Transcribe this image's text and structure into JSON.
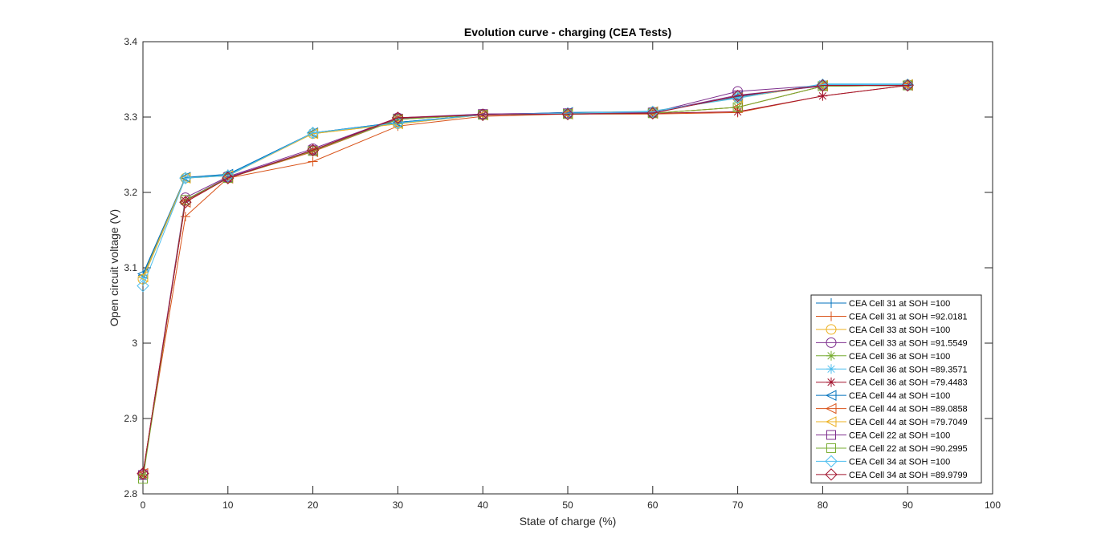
{
  "chart_data": {
    "type": "line",
    "title": "Evolution curve - charging (CEA Tests)",
    "xlabel": "State of charge (%)",
    "ylabel": "Open circuit voltage (V)",
    "xlim": [
      0,
      100
    ],
    "ylim": [
      2.8,
      3.4
    ],
    "x_ticks": [
      "0",
      "10",
      "20",
      "30",
      "40",
      "50",
      "60",
      "70",
      "80",
      "90",
      "100"
    ],
    "y_ticks": [
      "2.8",
      "2.9",
      "3",
      "3.1",
      "3.2",
      "3.3",
      "3.4"
    ],
    "grid": false,
    "legend_position": "bottom-right",
    "x": [
      0,
      5,
      10,
      20,
      30,
      40,
      50,
      60,
      70,
      80,
      90
    ],
    "series": [
      {
        "name": "CEA Cell 31 at SOH =100",
        "color": "#0072BD",
        "marker": "plus",
        "values": [
          3.09,
          3.219,
          3.224,
          3.279,
          3.293,
          3.303,
          3.306,
          3.307,
          3.327,
          3.343,
          3.343
        ]
      },
      {
        "name": "CEA Cell 31 at SOH =92.0181",
        "color": "#D95319",
        "marker": "plus",
        "values": [
          2.826,
          3.168,
          3.219,
          3.241,
          3.288,
          3.301,
          3.304,
          3.304,
          3.306,
          3.328,
          3.342
        ]
      },
      {
        "name": "CEA Cell 33 at SOH =100",
        "color": "#EDB120",
        "marker": "circle",
        "values": [
          3.085,
          3.219,
          3.222,
          3.278,
          3.291,
          3.303,
          3.305,
          3.307,
          3.326,
          3.342,
          3.343
        ]
      },
      {
        "name": "CEA Cell 33 at SOH =91.5549",
        "color": "#7E2F8E",
        "marker": "circle",
        "values": [
          2.826,
          3.193,
          3.221,
          3.258,
          3.299,
          3.304,
          3.305,
          3.306,
          3.334,
          3.342,
          3.342
        ]
      },
      {
        "name": "CEA Cell 36 at SOH =100",
        "color": "#77AC30",
        "marker": "asterisk",
        "values": [
          2.824,
          3.189,
          3.219,
          3.255,
          3.297,
          3.303,
          3.304,
          3.305,
          3.313,
          3.341,
          3.342
        ]
      },
      {
        "name": "CEA Cell 36 at SOH =89.3571",
        "color": "#4DBEEE",
        "marker": "asterisk",
        "values": [
          3.087,
          3.219,
          3.223,
          3.279,
          3.292,
          3.303,
          3.305,
          3.308,
          3.325,
          3.344,
          3.344
        ]
      },
      {
        "name": "CEA Cell 36 at SOH =79.4483",
        "color": "#A2142F",
        "marker": "asterisk",
        "values": [
          2.826,
          3.189,
          3.219,
          3.256,
          3.299,
          3.303,
          3.304,
          3.305,
          3.307,
          3.328,
          3.342
        ]
      },
      {
        "name": "CEA Cell 44 at SOH =100",
        "color": "#0072BD",
        "marker": "triangle-left",
        "values": [
          3.092,
          3.22,
          3.224,
          3.279,
          3.293,
          3.303,
          3.306,
          3.307,
          3.327,
          3.342,
          3.343
        ]
      },
      {
        "name": "CEA Cell 44 at SOH =89.0858",
        "color": "#D95319",
        "marker": "triangle-left",
        "values": [
          2.827,
          3.187,
          3.219,
          3.254,
          3.297,
          3.303,
          3.304,
          3.305,
          3.313,
          3.341,
          3.342
        ]
      },
      {
        "name": "CEA Cell 44 at SOH =79.7049",
        "color": "#EDB120",
        "marker": "triangle-left",
        "values": [
          3.088,
          3.219,
          3.222,
          3.278,
          3.291,
          3.303,
          3.305,
          3.307,
          3.326,
          3.342,
          3.343
        ]
      },
      {
        "name": "CEA Cell 22 at SOH =100",
        "color": "#7E2F8E",
        "marker": "square",
        "values": [
          2.825,
          3.19,
          3.22,
          3.256,
          3.298,
          3.304,
          3.305,
          3.306,
          3.329,
          3.341,
          3.342
        ]
      },
      {
        "name": "CEA Cell 22 at SOH =90.2995",
        "color": "#77AC30",
        "marker": "square",
        "values": [
          2.82,
          3.19,
          3.219,
          3.255,
          3.297,
          3.303,
          3.304,
          3.305,
          3.313,
          3.341,
          3.342
        ]
      },
      {
        "name": "CEA Cell 34 at SOH =100",
        "color": "#4DBEEE",
        "marker": "diamond",
        "values": [
          3.076,
          3.219,
          3.222,
          3.279,
          3.292,
          3.303,
          3.305,
          3.307,
          3.326,
          3.343,
          3.343
        ]
      },
      {
        "name": "CEA Cell 34 at SOH =89.9799",
        "color": "#A2142F",
        "marker": "diamond",
        "values": [
          2.827,
          3.187,
          3.219,
          3.256,
          3.299,
          3.303,
          3.304,
          3.305,
          3.328,
          3.342,
          3.342
        ]
      }
    ]
  }
}
